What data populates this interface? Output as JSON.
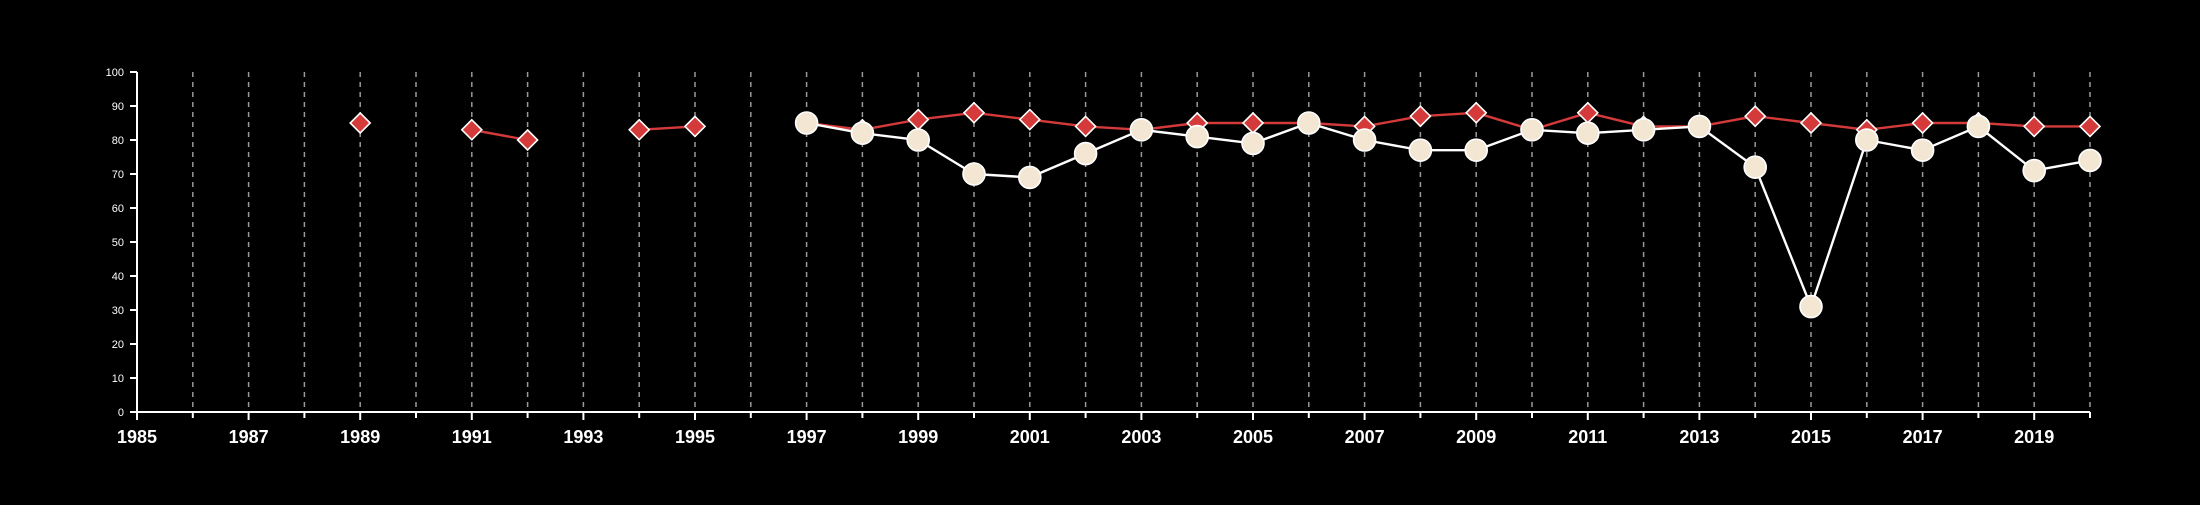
{
  "chart_data": {
    "type": "line",
    "title": "",
    "xlabel": "",
    "ylabel": "",
    "xlim": [
      1985,
      2020
    ],
    "ylim": [
      0,
      100
    ],
    "grid": "vertical dashed",
    "legend": "none",
    "background_color": "#000000",
    "x_ticks": [
      1985,
      1987,
      1989,
      1991,
      1993,
      1995,
      1997,
      1999,
      2001,
      2003,
      2005,
      2007,
      2009,
      2011,
      2013,
      2015,
      2017,
      2019
    ],
    "x_tick_labels": [
      "1985",
      "1987",
      "1989",
      "1991",
      "1993",
      "1995",
      "1997",
      "1999",
      "2001",
      "2003",
      "2005",
      "2007",
      "2009",
      "2011",
      "2013",
      "2015",
      "2017",
      "2019"
    ],
    "y_ticks": [
      0,
      10,
      20,
      30,
      40,
      50,
      60,
      70,
      80,
      90,
      100
    ],
    "y_tick_labels": [
      "0",
      "10",
      "20",
      "30",
      "40",
      "50",
      "60",
      "70",
      "80",
      "90",
      "100"
    ],
    "series": [
      {
        "marker": "diamond",
        "color": "#d43a3a",
        "line_color": "#d43a3a",
        "points": [
          {
            "x": 1989,
            "y": 85
          },
          {
            "x": 1991,
            "y": 83
          },
          {
            "x": 1992,
            "y": 80
          },
          {
            "x": 1994,
            "y": 83
          },
          {
            "x": 1995,
            "y": 84
          },
          {
            "x": 1997,
            "y": 85
          },
          {
            "x": 1998,
            "y": 83
          },
          {
            "x": 1999,
            "y": 86
          },
          {
            "x": 2000,
            "y": 88
          },
          {
            "x": 2001,
            "y": 86
          },
          {
            "x": 2002,
            "y": 84
          },
          {
            "x": 2003,
            "y": 83
          },
          {
            "x": 2004,
            "y": 85
          },
          {
            "x": 2005,
            "y": 85
          },
          {
            "x": 2006,
            "y": 85
          },
          {
            "x": 2007,
            "y": 84
          },
          {
            "x": 2008,
            "y": 87
          },
          {
            "x": 2009,
            "y": 88
          },
          {
            "x": 2010,
            "y": 83
          },
          {
            "x": 2011,
            "y": 88
          },
          {
            "x": 2012,
            "y": 84
          },
          {
            "x": 2013,
            "y": 84
          },
          {
            "x": 2014,
            "y": 87
          },
          {
            "x": 2015,
            "y": 85
          },
          {
            "x": 2016,
            "y": 83
          },
          {
            "x": 2017,
            "y": 85
          },
          {
            "x": 2018,
            "y": 85
          },
          {
            "x": 2019,
            "y": 84
          },
          {
            "x": 2020,
            "y": 84
          }
        ]
      },
      {
        "marker": "circle",
        "color": "#f3e6d3",
        "line_color": "#ffffff",
        "points": [
          {
            "x": 1997,
            "y": 85
          },
          {
            "x": 1998,
            "y": 82
          },
          {
            "x": 1999,
            "y": 80
          },
          {
            "x": 2000,
            "y": 70
          },
          {
            "x": 2001,
            "y": 69
          },
          {
            "x": 2002,
            "y": 76
          },
          {
            "x": 2003,
            "y": 83
          },
          {
            "x": 2004,
            "y": 81
          },
          {
            "x": 2005,
            "y": 79
          },
          {
            "x": 2006,
            "y": 85
          },
          {
            "x": 2007,
            "y": 80
          },
          {
            "x": 2008,
            "y": 77
          },
          {
            "x": 2009,
            "y": 77
          },
          {
            "x": 2010,
            "y": 83
          },
          {
            "x": 2011,
            "y": 82
          },
          {
            "x": 2012,
            "y": 83
          },
          {
            "x": 2013,
            "y": 84
          },
          {
            "x": 2014,
            "y": 72
          },
          {
            "x": 2015,
            "y": 31
          },
          {
            "x": 2016,
            "y": 80
          },
          {
            "x": 2017,
            "y": 77
          },
          {
            "x": 2018,
            "y": 84
          },
          {
            "x": 2019,
            "y": 71
          },
          {
            "x": 2020,
            "y": 74
          }
        ]
      }
    ]
  }
}
